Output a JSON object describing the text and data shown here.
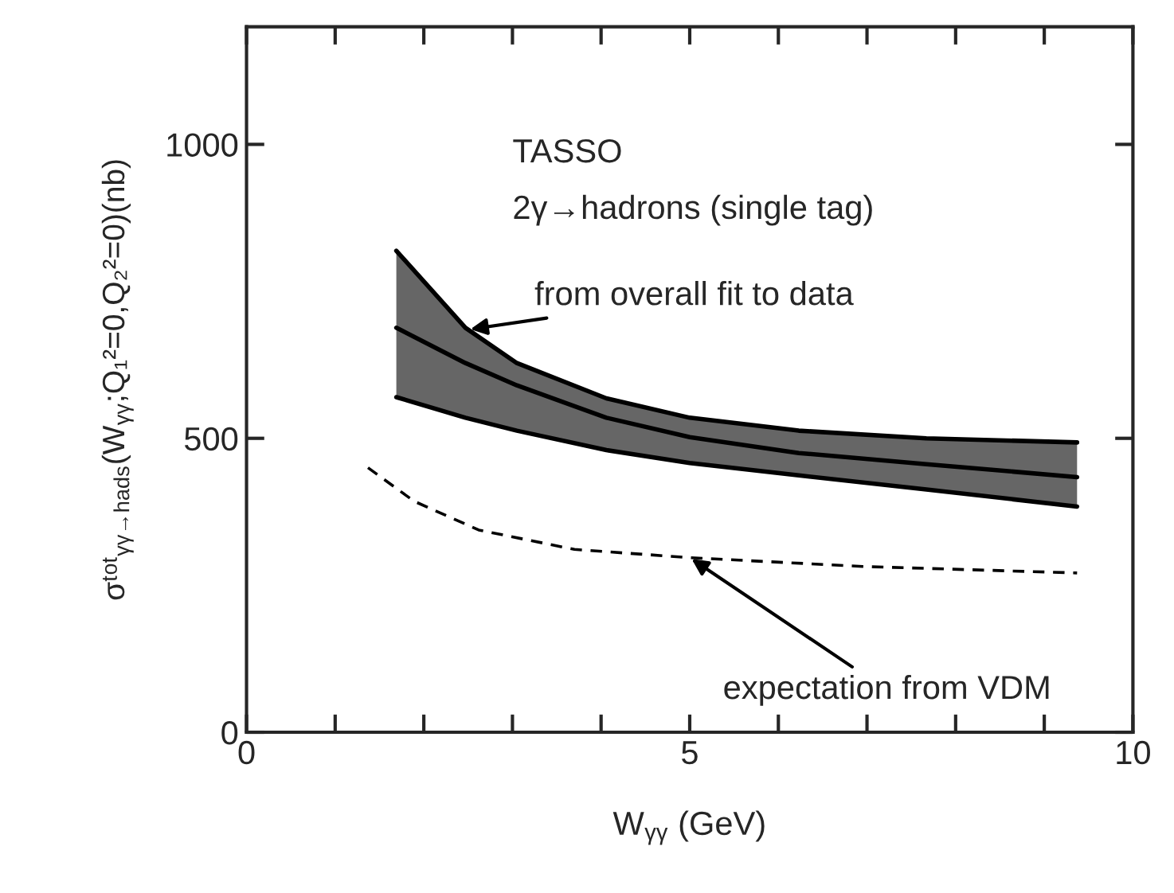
{
  "chart_data": {
    "type": "line",
    "xlabel": "W$_{γγ}$ (GeV)",
    "ylabel": "σᵗᵒᵗ$_{γγ→hads}$(W$_{γγ}$;Q₁²=0,Q₂²=0)(nb)",
    "annotations": [
      "TASSO",
      "2γ→hadrons (single tag)",
      {
        "text": "from overall fit to data",
        "x": 2.5,
        "y": 685
      },
      {
        "text": "expectation from VDM",
        "x": 5.0,
        "y": 297
      }
    ],
    "series": [
      {
        "color": "#000000",
        "line_style": "solid",
        "x": [
          1.69,
          2.47,
          3.05,
          4.06,
          5.0,
          6.23,
          7.67,
          9.37
        ],
        "values": [
          688,
          628,
          590,
          535,
          502,
          475,
          456,
          434
        ],
        "lower": [
          570,
          535,
          513,
          480,
          458,
          437,
          413,
          384
        ],
        "upper": [
          819,
          688,
          628,
          568,
          535,
          513,
          500,
          493
        ]
      },
      {
        "color": "#000000",
        "line_style": "solid",
        "x": [
          1.69,
          2.47,
          3.05,
          4.06,
          5.0,
          6.23,
          7.67,
          9.37
        ],
        "values": [
          819,
          688,
          628,
          568,
          535,
          513,
          500,
          493
        ]
      },
      {
        "color": "#000000",
        "line_style": "solid",
        "x": [
          1.69,
          2.47,
          3.05,
          4.06,
          5.0,
          6.23,
          7.67,
          9.37
        ],
        "values": [
          570,
          535,
          513,
          480,
          458,
          437,
          413,
          384
        ]
      },
      {
        "color": "#000000",
        "line_style": "dashed",
        "x": [
          1.37,
          1.89,
          2.62,
          3.7,
          5.0,
          6.95,
          9.37
        ],
        "values": [
          450,
          393,
          344,
          311,
          297,
          282,
          271
        ]
      }
    ],
    "xlim": [
      0,
      10
    ],
    "ylim": [
      0,
      1200
    ],
    "xticks": [
      0,
      {
        "value": 1,
        "label": null
      },
      {
        "value": 2,
        "label": null
      },
      {
        "value": 3,
        "label": null
      },
      {
        "value": 4,
        "label": null
      },
      5,
      {
        "value": 6,
        "label": null
      },
      {
        "value": 7,
        "label": null
      },
      {
        "value": 8,
        "label": null
      },
      {
        "value": 9,
        "label": null
      },
      10
    ],
    "yticks": [
      0,
      500,
      1000
    ],
    "grid": false,
    "legend": false
  }
}
